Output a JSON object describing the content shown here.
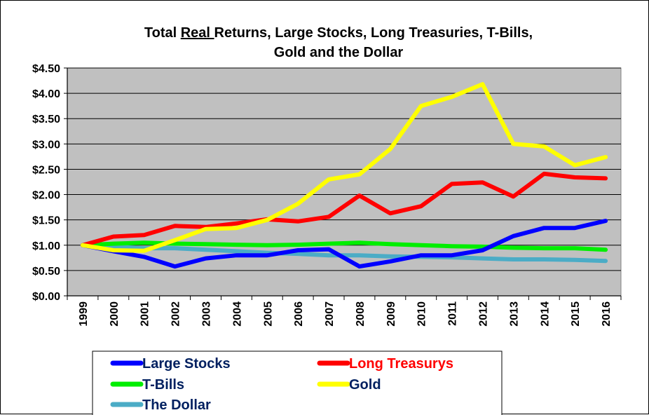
{
  "chart_data": {
    "type": "line",
    "title_line1_pre": "Total ",
    "title_line1_underlined": "Real ",
    "title_line1_post": "Returns, Large Stocks, Long Treasuries, T-Bills,",
    "title_line2": "Gold and the Dollar",
    "xlabel": "",
    "ylabel": "",
    "ylim": [
      0,
      4.5
    ],
    "y_ticks": [
      "$0.00",
      "$0.50",
      "$1.00",
      "$1.50",
      "$2.00",
      "$2.50",
      "$3.00",
      "$3.50",
      "$4.00",
      "$4.50"
    ],
    "x": [
      "1999",
      "2000",
      "2001",
      "2002",
      "2003",
      "2004",
      "2005",
      "2006",
      "2007",
      "2008",
      "2009",
      "2010",
      "2011",
      "2012",
      "2013",
      "2014",
      "2015",
      "2016"
    ],
    "grid": true,
    "plot_background": "#c0c0c0",
    "legend_position": "bottom",
    "series": [
      {
        "name": "Large Stocks",
        "color": "#0000ff",
        "label_color": "#002060",
        "values": [
          1.0,
          0.88,
          0.77,
          0.58,
          0.74,
          0.8,
          0.8,
          0.9,
          0.92,
          0.58,
          0.68,
          0.8,
          0.8,
          0.9,
          1.18,
          1.34,
          1.34,
          1.48
        ]
      },
      {
        "name": "Long Treasurys",
        "color": "#ff0000",
        "label_color": "#ff0000",
        "values": [
          1.0,
          1.17,
          1.2,
          1.38,
          1.36,
          1.43,
          1.51,
          1.47,
          1.56,
          1.98,
          1.63,
          1.77,
          2.21,
          2.24,
          1.96,
          2.41,
          2.34,
          2.32
        ]
      },
      {
        "name": "T-Bills",
        "color": "#00ee00",
        "label_color": "#002060",
        "values": [
          1.0,
          1.03,
          1.05,
          1.03,
          1.02,
          1.01,
          1.0,
          1.01,
          1.03,
          1.05,
          1.02,
          1.0,
          0.98,
          0.97,
          0.95,
          0.94,
          0.94,
          0.91
        ]
      },
      {
        "name": "Gold",
        "color": "#ffff00",
        "label_color": "#002060",
        "values": [
          1.0,
          0.9,
          0.89,
          1.1,
          1.32,
          1.34,
          1.5,
          1.82,
          2.3,
          2.4,
          2.9,
          3.75,
          3.93,
          4.18,
          3.0,
          2.95,
          2.58,
          2.74
        ]
      },
      {
        "name": "The Dollar",
        "color": "#4bacc6",
        "label_color": "#002060",
        "values": [
          1.0,
          0.97,
          0.94,
          0.94,
          0.91,
          0.88,
          0.85,
          0.83,
          0.8,
          0.8,
          0.78,
          0.77,
          0.76,
          0.74,
          0.72,
          0.72,
          0.71,
          0.69
        ]
      }
    ]
  }
}
